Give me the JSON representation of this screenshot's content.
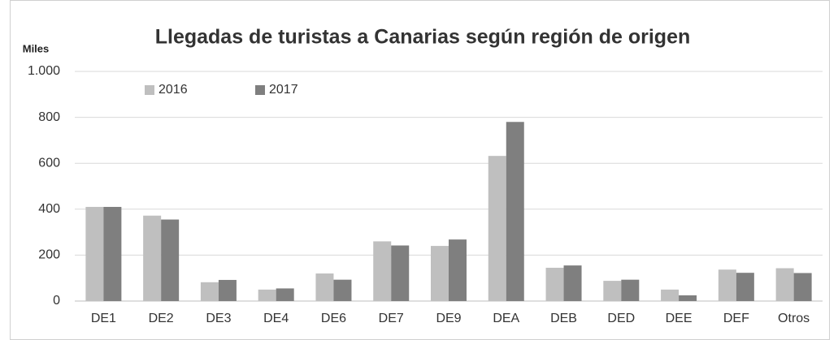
{
  "chart_data": {
    "type": "bar",
    "title": "Llegadas de turistas a Canarias según región de origen",
    "y_label": "Miles",
    "categories": [
      "DE1",
      "DE2",
      "DE3",
      "DE4",
      "DE6",
      "DE7",
      "DE9",
      "DEA",
      "DEB",
      "DED",
      "DEE",
      "DEF",
      "Otros"
    ],
    "series": [
      {
        "name": "2016",
        "color": "#bfbfbf",
        "values": [
          410,
          372,
          82,
          50,
          120,
          260,
          240,
          632,
          145,
          88,
          50,
          137,
          143
        ]
      },
      {
        "name": "2017",
        "color": "#7f7f7f",
        "values": [
          410,
          355,
          92,
          55,
          93,
          242,
          268,
          780,
          155,
          93,
          25,
          123,
          122
        ]
      }
    ],
    "ylim": [
      0,
      1000
    ],
    "yticks": [
      0,
      200,
      400,
      600,
      800,
      {
        "value": 1000,
        "label": "1.000"
      }
    ],
    "grid": true,
    "legend": "top-left"
  }
}
